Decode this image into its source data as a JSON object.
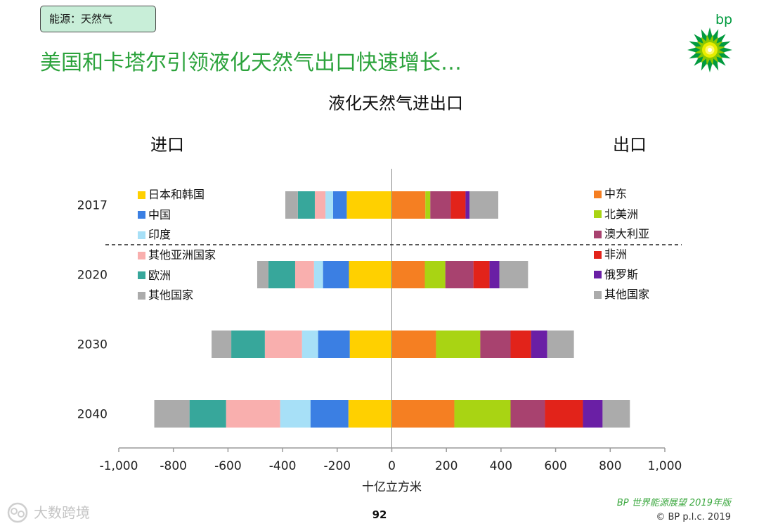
{
  "header": {
    "tag": "能源：天然气",
    "title": "美国和卡塔尔引领液化天然气出口快速增长…",
    "logo_text": "bp",
    "logo_icon": "bp-helios-logo"
  },
  "colors": {
    "title_green": "#2CA33C",
    "tag_background": "#C8EED8",
    "source_green": "#3BA83F",
    "logo_green": "#009A3E"
  },
  "chart_data": {
    "type": "bar",
    "orientation": "horizontal",
    "stacked": true,
    "title": "液化天然气进出口",
    "side_labels": {
      "left": "进口",
      "right": "出口"
    },
    "categories": [
      "2017",
      "2020",
      "2030",
      "2040"
    ],
    "xlabel": "十亿立方米",
    "ylabel": "",
    "xlim": [
      -1000,
      1000
    ],
    "xticks": [
      -1000,
      -800,
      -600,
      -400,
      -200,
      0,
      200,
      400,
      600,
      800,
      1000
    ],
    "xtick_labels": [
      "-1,000",
      "-800",
      "-600",
      "-400",
      "-200",
      "0",
      "200",
      "400",
      "600",
      "800",
      "1,000"
    ],
    "grid": false,
    "divider_after_category": "2017",
    "legend_placement": [
      "top-left",
      "top-right"
    ],
    "series": [
      {
        "name": "日本和韩国",
        "group": "进口",
        "color": "#FFD000",
        "values": [
          -165,
          -157,
          -154,
          -159
        ]
      },
      {
        "name": "中国",
        "group": "进口",
        "color": "#3B7FE3",
        "values": [
          -50,
          -95,
          -116,
          -139
        ]
      },
      {
        "name": "印度",
        "group": "进口",
        "color": "#A7E0F7",
        "values": [
          -28,
          -33,
          -59,
          -111
        ]
      },
      {
        "name": "其他亚洲国家",
        "group": "进口",
        "color": "#F9AFAE",
        "values": [
          -39,
          -69,
          -136,
          -198
        ]
      },
      {
        "name": "欧洲",
        "group": "进口",
        "color": "#37A79B",
        "values": [
          -62,
          -98,
          -123,
          -134
        ]
      },
      {
        "name": "其他国家",
        "group": "进口",
        "color": "#ABABAB",
        "values": [
          -46,
          -41,
          -72,
          -129
        ]
      },
      {
        "name": "中东",
        "group": "出口",
        "color": "#F57F22",
        "values": [
          123,
          121,
          162,
          229
        ]
      },
      {
        "name": "北美洲",
        "group": "出口",
        "color": "#A9D413",
        "values": [
          18,
          75,
          162,
          206
        ]
      },
      {
        "name": "澳大利亚",
        "group": "出口",
        "color": "#A8426F",
        "values": [
          75,
          103,
          111,
          126
        ]
      },
      {
        "name": "非洲",
        "group": "出口",
        "color": "#E2231A",
        "values": [
          54,
          59,
          75,
          139
        ]
      },
      {
        "name": "俄罗斯",
        "group": "出口",
        "color": "#6A1FA5",
        "values": [
          15,
          36,
          59,
          72
        ]
      },
      {
        "name": "其他国家",
        "group": "出口",
        "color": "#ABABAB",
        "values": [
          105,
          105,
          98,
          100
        ]
      }
    ]
  },
  "footer": {
    "page_number": "92",
    "source": "BP 世界能源展望 2019年版",
    "copyright": "© BP p.l.c. 2019",
    "watermark": "大数跨境",
    "watermark_icon": "watermark-logo-icon"
  }
}
